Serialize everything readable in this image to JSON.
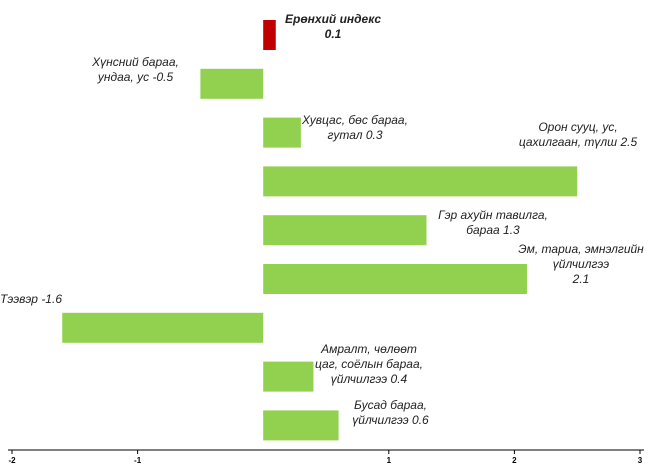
{
  "chart_data": {
    "type": "bar",
    "orientation": "horizontal",
    "categories": [
      "Ерөнхий индекс",
      "Хүнсний бараа, ундаа, ус",
      "Хувцас, бөс бараа, гутал",
      "Орон сууц, ус, цахилгаан, түлш",
      "Гэр ахуйн тавилга, бараа",
      "Эм, тариа, эмнэлгийн үйлчилгээ",
      "Тээвэр",
      "Амралт, чөлөөт цаг, соёлын бараа, үйлчилгээ",
      "Бусад бараа, үйлчилгээ"
    ],
    "values": [
      0.1,
      -0.5,
      0.3,
      2.5,
      1.3,
      2.1,
      -1.6,
      0.4,
      0.6
    ],
    "colors": [
      "#c00000",
      "#92d050",
      "#92d050",
      "#92d050",
      "#92d050",
      "#92d050",
      "#92d050",
      "#92d050",
      "#92d050"
    ],
    "xlim": [
      -2,
      3
    ],
    "xticks": [
      -2,
      -1,
      1,
      2,
      3
    ]
  }
}
